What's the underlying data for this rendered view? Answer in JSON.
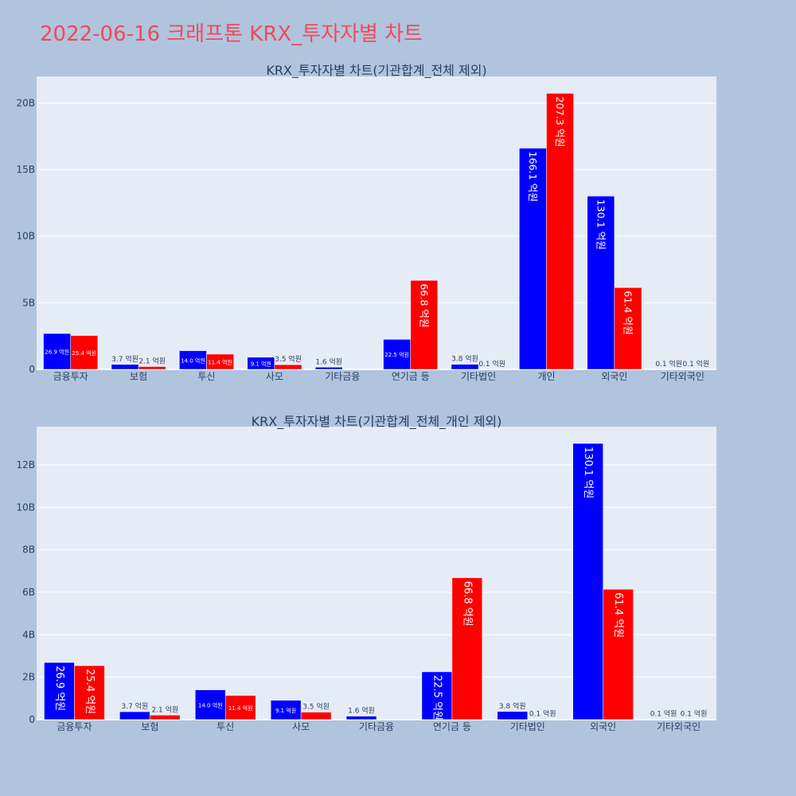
{
  "page": {
    "title": "2022-06-16 크래프톤 KRX_투자자별 차트"
  },
  "colors": {
    "background": "#b0c4de",
    "plot_background": "#e5ecf6",
    "grid": "#ffffff",
    "title": "#ef4a5b",
    "text": "#2a3f5f",
    "series_a": "#0000ff",
    "series_b": "#ff0000"
  },
  "chart_data": [
    {
      "type": "bar",
      "title": "KRX_투자자별 차트(기관합계_전체 제외)",
      "xlabel": "",
      "ylabel": "",
      "categories": [
        "금융투자",
        "보험",
        "투신",
        "사모",
        "기타금융",
        "연기금 등",
        "기타법인",
        "개인",
        "외국인",
        "기타외국인"
      ],
      "ylim": [
        0,
        22
      ],
      "yticks": [
        0,
        5,
        10,
        15,
        20
      ],
      "ytick_labels": [
        "0",
        "5B",
        "10B",
        "15B",
        "20B"
      ],
      "grid": true,
      "series": [
        {
          "color": "#0000ff",
          "values": [
            2.69,
            0.37,
            1.4,
            0.91,
            0.16,
            2.25,
            0.38,
            16.61,
            13.01,
            0.01
          ],
          "labels": [
            "26.9 억원",
            "3.7 억원",
            "14.0 억원",
            "9.1 억원",
            "1.6 억원",
            "22.5 억원",
            "3.8 억원",
            "166.1 억원",
            "130.1 억원",
            "0.1 억원"
          ]
        },
        {
          "color": "#ff0000",
          "values": [
            2.54,
            0.21,
            1.14,
            0.35,
            0.0,
            6.68,
            0.01,
            20.73,
            6.14,
            0.01
          ],
          "labels": [
            "25.4 억원",
            "2.1 억원",
            "11.4 억원",
            "3.5 억원",
            "",
            "66.8 억원",
            "0.1 억원",
            "207.3 억원",
            "61.4 억원",
            "0.1 억원"
          ]
        }
      ]
    },
    {
      "type": "bar",
      "title": "KRX_투자자별 차트(기관합계_전체_개인 제외)",
      "xlabel": "",
      "ylabel": "",
      "categories": [
        "금융투자",
        "보험",
        "투신",
        "사모",
        "기타금융",
        "연기금 등",
        "기타법인",
        "외국인",
        "기타외국인"
      ],
      "ylim": [
        0,
        13.8
      ],
      "yticks": [
        0,
        2,
        4,
        6,
        8,
        10,
        12
      ],
      "ytick_labels": [
        "0",
        "2B",
        "4B",
        "6B",
        "8B",
        "10B",
        "12B"
      ],
      "grid": true,
      "series": [
        {
          "color": "#0000ff",
          "values": [
            2.69,
            0.37,
            1.4,
            0.91,
            0.16,
            2.25,
            0.38,
            13.01,
            0.01
          ],
          "labels": [
            "26.9 억원",
            "3.7 억원",
            "14.0 억원",
            "9.1 억원",
            "1.6 억원",
            "22.5 억원",
            "3.8 억원",
            "130.1 억원",
            "0.1 억원"
          ]
        },
        {
          "color": "#ff0000",
          "values": [
            2.54,
            0.21,
            1.14,
            0.35,
            0.0,
            6.68,
            0.01,
            6.14,
            0.01
          ],
          "labels": [
            "25.4 억원",
            "2.1 억원",
            "11.4 억원",
            "3.5 억원",
            "",
            "66.8 억원",
            "0.1 억원",
            "61.4 억원",
            "0.1 억원"
          ]
        }
      ]
    }
  ]
}
